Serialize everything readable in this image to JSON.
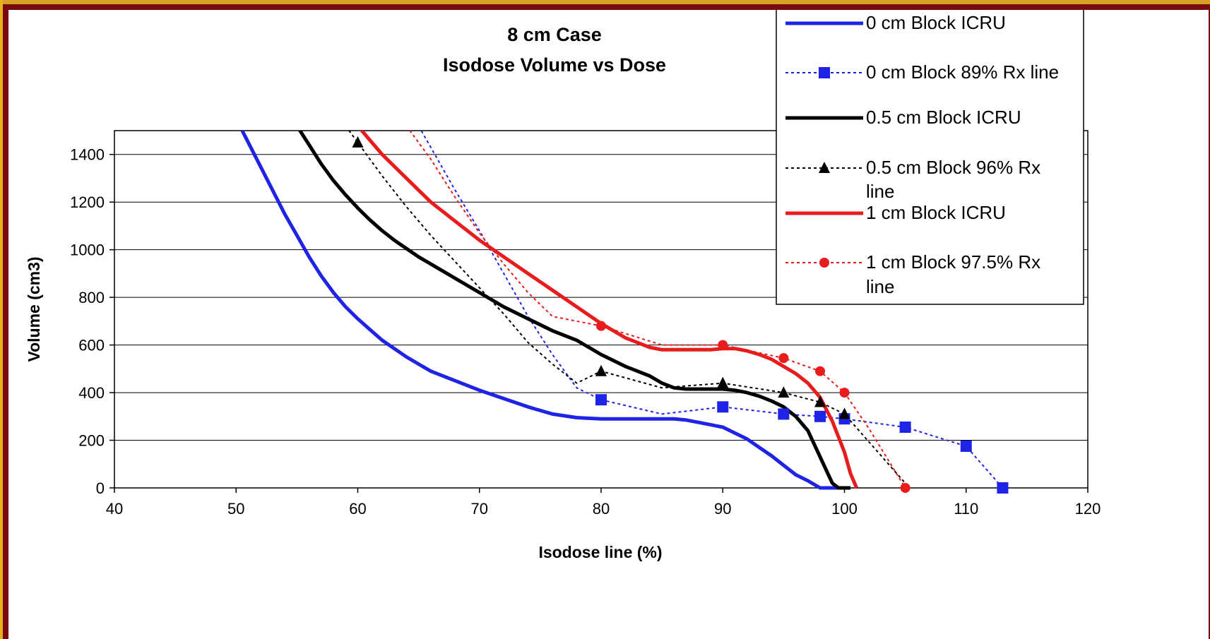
{
  "chart_data": {
    "type": "line",
    "title": "8 cm Case",
    "subtitle": "Isodose Volume vs Dose",
    "xlabel": "Isodose line (%)",
    "ylabel": "Volume (cm3)",
    "xlim": [
      40,
      120
    ],
    "ylim": [
      0,
      1500
    ],
    "xticks": [
      "40",
      "50",
      "60",
      "70",
      "80",
      "90",
      "100",
      "110",
      "120"
    ],
    "yticks": [
      "0",
      "200",
      "400",
      "600",
      "800",
      "1000",
      "1200",
      "1400"
    ],
    "grid": "horizontal",
    "legend_position": "top-right",
    "series": [
      {
        "name": "0 cm Block ICRU",
        "color": "#1f23e6",
        "style": "solid",
        "marker": "none",
        "x": [
          50.5,
          52,
          54,
          55,
          56,
          57,
          58,
          59,
          60,
          61,
          62,
          63,
          64,
          65,
          66,
          68,
          70,
          72,
          74,
          76,
          78,
          80,
          82,
          84,
          85,
          86,
          87,
          88,
          89,
          90,
          91,
          92,
          93,
          94,
          95,
          96,
          97,
          98,
          99,
          99.5,
          100
        ],
        "y": [
          1500,
          1350,
          1150,
          1060,
          970,
          890,
          820,
          760,
          710,
          665,
          620,
          585,
          550,
          520,
          490,
          450,
          410,
          375,
          340,
          310,
          295,
          290,
          290,
          290,
          290,
          290,
          285,
          275,
          265,
          255,
          230,
          205,
          170,
          135,
          95,
          55,
          30,
          0,
          0,
          0,
          0
        ]
      },
      {
        "name": "0 cm Block 89% Rx line",
        "color": "#1f23e6",
        "style": "dotted",
        "marker": "square",
        "x": [
          65,
          68,
          70,
          72,
          74,
          76,
          78,
          80,
          85,
          90,
          95,
          98,
          100,
          105,
          110,
          113
        ],
        "y": [
          1520,
          1250,
          1080,
          900,
          720,
          560,
          420,
          370,
          310,
          340,
          310,
          300,
          290,
          255,
          175,
          0
        ],
        "marker_x": [
          80,
          90,
          95,
          98,
          100,
          105,
          110,
          113
        ],
        "marker_y": [
          370,
          340,
          310,
          300,
          290,
          255,
          175,
          0
        ]
      },
      {
        "name": "0.5 cm Block ICRU",
        "color": "#000000",
        "style": "solid",
        "marker": "none",
        "x": [
          55,
          56,
          57,
          58,
          59,
          60,
          61,
          62,
          63,
          65,
          68,
          70,
          72,
          74,
          76,
          78,
          80,
          82,
          84,
          85,
          86,
          87,
          88,
          89,
          90,
          91,
          92,
          93,
          94,
          95,
          96,
          97,
          98,
          99,
          99.5,
          100,
          100.5
        ],
        "y": [
          1520,
          1440,
          1360,
          1290,
          1230,
          1175,
          1125,
          1080,
          1040,
          970,
          880,
          820,
          760,
          710,
          660,
          620,
          560,
          510,
          470,
          440,
          420,
          415,
          415,
          415,
          415,
          410,
          400,
          385,
          365,
          340,
          300,
          240,
          130,
          20,
          0,
          0,
          0
        ]
      },
      {
        "name": "0.5 cm Block 96% Rx line",
        "color": "#000000",
        "style": "dotted",
        "marker": "triangle",
        "x": [
          59,
          60,
          62,
          64,
          66,
          68,
          70,
          72,
          74,
          76,
          78,
          80,
          85,
          90,
          95,
          98,
          100,
          105
        ],
        "y": [
          1520,
          1450,
          1310,
          1180,
          1060,
          950,
          840,
          730,
          610,
          520,
          440,
          490,
          420,
          440,
          400,
          360,
          310,
          20
        ],
        "marker_x": [
          60,
          80,
          90,
          95,
          98,
          100
        ],
        "marker_y": [
          1450,
          490,
          440,
          400,
          360,
          310
        ]
      },
      {
        "name": "1 cm Block ICRU",
        "color": "#e81c1c",
        "style": "solid",
        "marker": "none",
        "x": [
          60,
          61,
          62,
          63,
          64,
          65,
          66,
          67,
          68,
          70,
          72,
          74,
          76,
          78,
          80,
          82,
          84,
          85,
          86,
          88,
          89,
          90,
          91,
          92,
          93,
          94,
          95,
          96,
          97,
          98,
          99,
          100,
          100.5,
          101
        ],
        "y": [
          1520,
          1460,
          1400,
          1350,
          1300,
          1250,
          1200,
          1160,
          1120,
          1040,
          970,
          900,
          830,
          760,
          690,
          630,
          590,
          580,
          580,
          580,
          580,
          585,
          585,
          575,
          560,
          540,
          510,
          480,
          440,
          380,
          280,
          150,
          60,
          0
        ]
      },
      {
        "name": "1 cm Block 97.5% Rx line",
        "color": "#e81c1c",
        "style": "dotted",
        "marker": "circle",
        "x": [
          64,
          66,
          68,
          70,
          72,
          74,
          76,
          78,
          80,
          85,
          90,
          95,
          98,
          100,
          102,
          105
        ],
        "y": [
          1520,
          1380,
          1220,
          1070,
          940,
          820,
          720,
          700,
          680,
          600,
          600,
          545,
          490,
          400,
          250,
          0
        ],
        "marker_x": [
          80,
          90,
          95,
          98,
          100,
          105
        ],
        "marker_y": [
          680,
          600,
          545,
          490,
          400,
          0
        ]
      }
    ]
  }
}
